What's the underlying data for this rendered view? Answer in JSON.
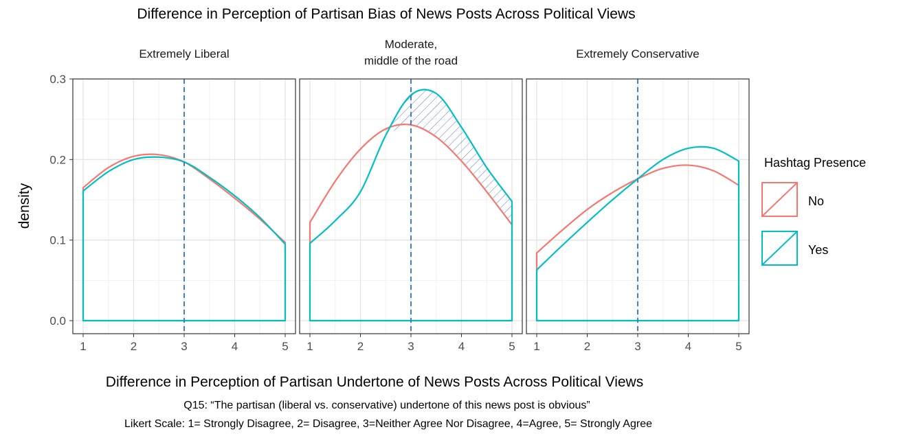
{
  "figure": {
    "title": "Difference in Perception of Partisan Bias of News Posts Across Political Views",
    "caption_title": "Difference in Perception of Partisan Undertone of News Posts Across Political Views",
    "question": "Q15: “The partisan (liberal vs. conservative) undertone of this news post is obvious”",
    "scale_note": "Likert Scale: 1= Strongly Disagree, 2= Disagree, 3=Neither Agree Nor Disagree, 4=Agree, 5= Strongly Agree"
  },
  "colors": {
    "No": "#F8766D",
    "Yes": "#00BFC4",
    "vline": "#3E7FD1",
    "hatch": "#3E5FD1"
  },
  "chart_data": {
    "type": "area",
    "ylabel": "density",
    "xlim": [
      1,
      5
    ],
    "ylim": [
      0,
      0.3
    ],
    "x_ticks": [
      "1",
      "2",
      "3",
      "4",
      "5"
    ],
    "y_ticks": [
      "0.0",
      "0.1",
      "0.2",
      "0.3"
    ],
    "y_tick_values": [
      0,
      0.1,
      0.2,
      0.3
    ],
    "grid": true,
    "reference_line_x": 3,
    "legend": {
      "title": "Hashtag Presence",
      "position": "right",
      "entries": [
        "No",
        "Yes"
      ]
    },
    "x": [
      1,
      1.5,
      2,
      2.5,
      3,
      3.5,
      4,
      4.5,
      5
    ],
    "panels": [
      {
        "title": "Extremely Liberal",
        "series": [
          {
            "name": "No",
            "values": [
              0.165,
              0.19,
              0.204,
              0.206,
              0.197,
              0.176,
              0.152,
              0.126,
              0.097
            ]
          },
          {
            "name": "Yes",
            "values": [
              0.161,
              0.185,
              0.2,
              0.203,
              0.197,
              0.178,
              0.155,
              0.128,
              0.095
            ]
          }
        ],
        "shaded": false
      },
      {
        "title": "Moderate,\nmiddle of the road",
        "series": [
          {
            "name": "No",
            "values": [
              0.122,
              0.173,
              0.213,
              0.238,
              0.243,
              0.228,
              0.198,
              0.16,
              0.119
            ]
          },
          {
            "name": "Yes",
            "values": [
              0.096,
              0.124,
              0.16,
              0.23,
              0.28,
              0.282,
              0.24,
              0.19,
              0.148
            ]
          }
        ],
        "shaded": true
      },
      {
        "title": "Extremely Conservative",
        "series": [
          {
            "name": "No",
            "values": [
              0.084,
              0.112,
              0.138,
              0.159,
              0.176,
              0.189,
              0.193,
              0.186,
              0.168
            ]
          },
          {
            "name": "Yes",
            "values": [
              0.063,
              0.093,
              0.122,
              0.15,
              0.176,
              0.2,
              0.214,
              0.214,
              0.198
            ]
          }
        ],
        "shaded": false
      }
    ]
  }
}
